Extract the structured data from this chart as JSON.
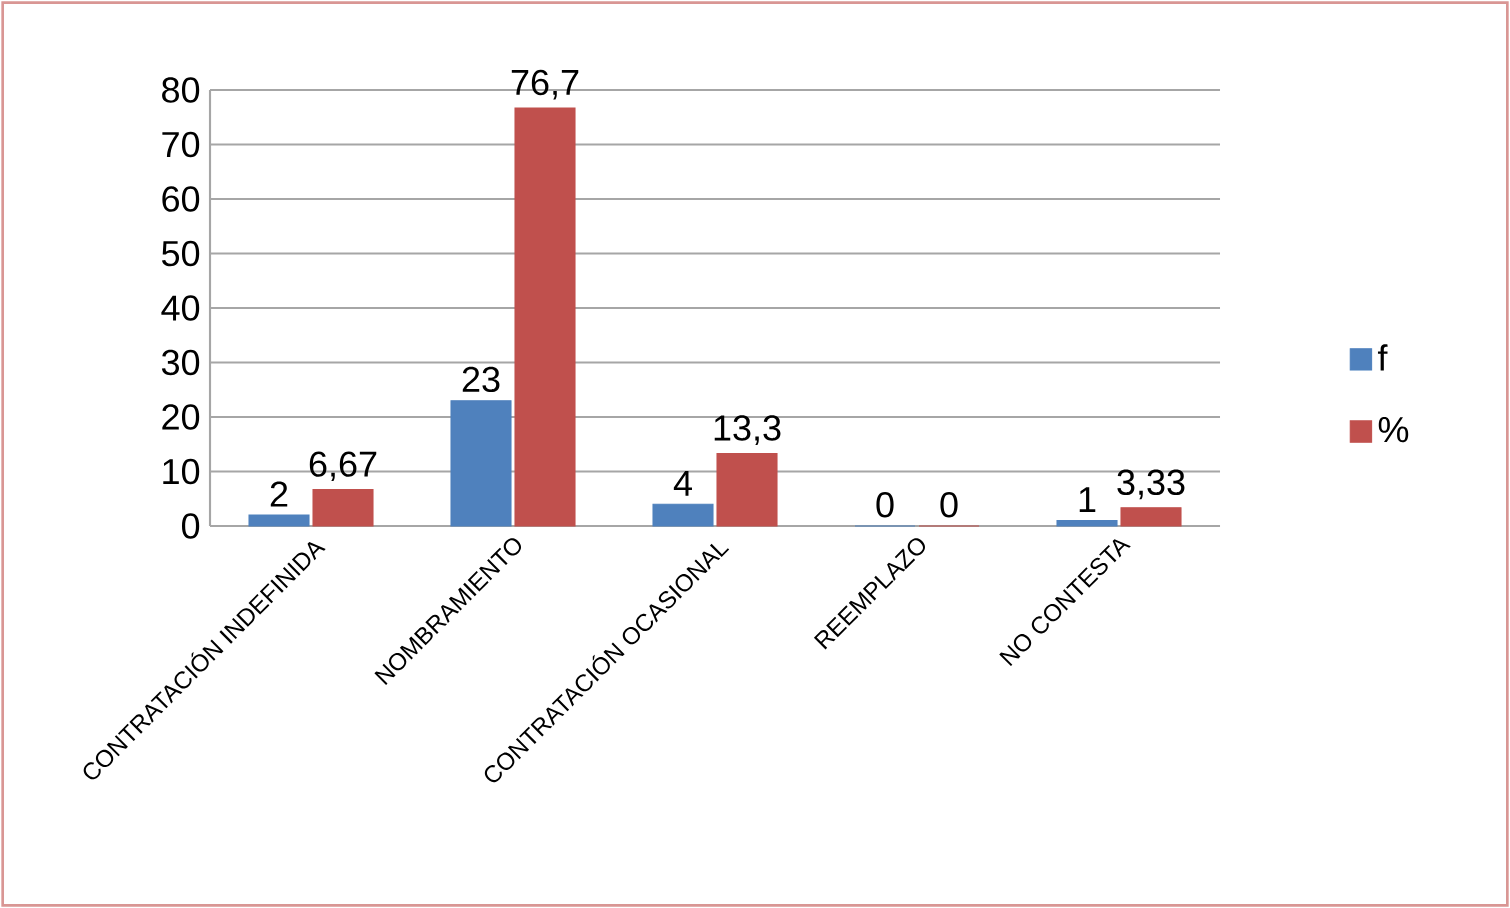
{
  "chart_data": {
    "type": "bar",
    "categories": [
      "CONTRATACIÓN INDEFINIDA",
      "NOMBRAMIENTO",
      "CONTRATACIÓN OCASIONAL",
      "REEMPLAZO",
      "NO CONTESTA"
    ],
    "series": [
      {
        "name": "f",
        "color": "#4f81bd",
        "values": [
          2,
          23,
          4,
          0,
          1
        ],
        "value_labels": [
          "2",
          "23",
          "4",
          "0",
          "1"
        ]
      },
      {
        "name": "%",
        "color": "#c0504d",
        "values": [
          6.67,
          76.7,
          13.3,
          0,
          3.33
        ],
        "value_labels": [
          "6,67",
          "76,7",
          "13,3",
          "0",
          "3,33"
        ]
      }
    ],
    "ylim": [
      0,
      80
    ],
    "yticks": [
      0,
      10,
      20,
      30,
      40,
      50,
      60,
      70,
      80
    ],
    "grid": "y",
    "legend": "right"
  }
}
